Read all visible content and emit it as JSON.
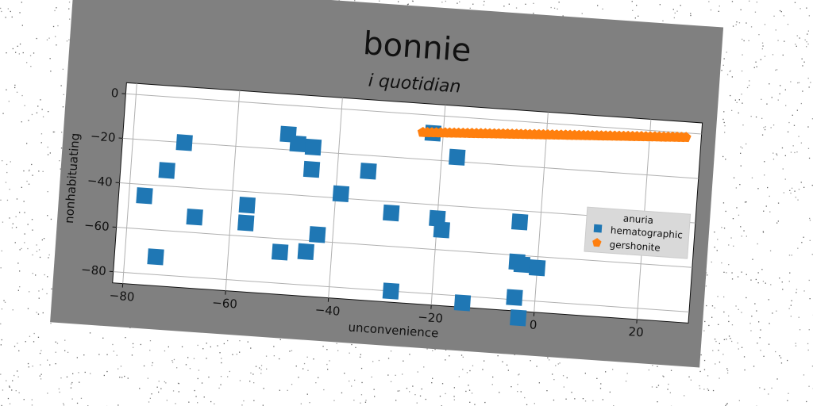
{
  "chart_data": {
    "type": "scatter",
    "title": "bonnie",
    "subtitle": "i quotidian",
    "xlabel": "unconvenience",
    "ylabel": "nonhabituating",
    "xlim": [
      -82,
      30
    ],
    "ylim": [
      -85,
      5
    ],
    "xticks": [
      -80,
      -60,
      -40,
      -20,
      0,
      20
    ],
    "yticks": [
      0,
      -20,
      -40,
      -60,
      -80
    ],
    "grid": true,
    "legend": {
      "title": "anuria",
      "placement": "right"
    },
    "series": [
      {
        "name": "hematographic",
        "color": "#1f77b4",
        "marker": "square",
        "points": [
          [
            -77,
            -45
          ],
          [
            -74,
            -72
          ],
          [
            -73,
            -33
          ],
          [
            -70,
            -20
          ],
          [
            -67,
            -53
          ],
          [
            -57,
            -46
          ],
          [
            -57,
            -54
          ],
          [
            -50,
            -13
          ],
          [
            -50,
            -66
          ],
          [
            -48,
            -17
          ],
          [
            -45,
            -28
          ],
          [
            -45,
            -18
          ],
          [
            -45,
            -65
          ],
          [
            -43,
            -57
          ],
          [
            -39,
            -38
          ],
          [
            -34,
            -27
          ],
          [
            -29,
            -45
          ],
          [
            -28,
            -80
          ],
          [
            -22,
            -8
          ],
          [
            -20,
            -46
          ],
          [
            -19,
            -51
          ],
          [
            -17,
            -18
          ],
          [
            -14,
            -83
          ],
          [
            -4,
            -45
          ],
          [
            -4,
            -63
          ],
          [
            -4,
            -79
          ],
          [
            -3,
            -64
          ],
          [
            -3,
            -88
          ],
          [
            0,
            -65
          ]
        ]
      },
      {
        "name": "gershonite",
        "color": "#ff7f0e",
        "marker": "pentagon",
        "x_start": -24,
        "x_end": 27,
        "y_start": -8,
        "y_end": -2,
        "count": 60
      }
    ]
  }
}
